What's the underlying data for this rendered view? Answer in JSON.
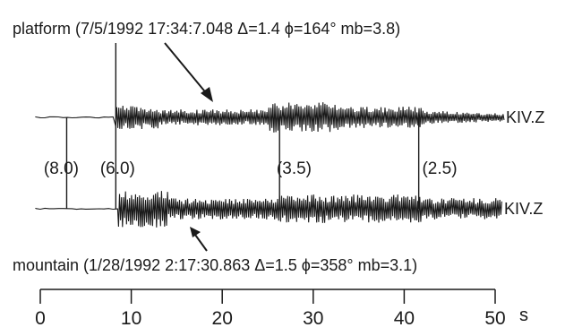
{
  "captions": {
    "platform": "platform (7/5/1992 17:34:7.048 Δ=1.4 ϕ=164° mb=3.8)",
    "mountain": "mountain (1/28/1992 2:17:30.863 Δ=1.5 ϕ=358° mb=3.1)"
  },
  "traces": [
    {
      "id": "platform",
      "station": "KIV.Z"
    },
    {
      "id": "mountain",
      "station": "KIV.Z"
    }
  ],
  "markers": [
    {
      "time": 2.9,
      "label": "(8.0)"
    },
    {
      "time": 8.3,
      "label": "(6.0)"
    },
    {
      "time": 26.3,
      "label": "(3.5)"
    },
    {
      "time": 41.6,
      "label": "(2.5)"
    }
  ],
  "time_axis": {
    "unit": "s",
    "range": [
      0,
      50
    ],
    "ticks": [
      "0",
      "10",
      "20",
      "30",
      "40",
      "50"
    ],
    "tick_values": [
      0,
      10,
      20,
      30,
      40,
      50
    ]
  }
}
